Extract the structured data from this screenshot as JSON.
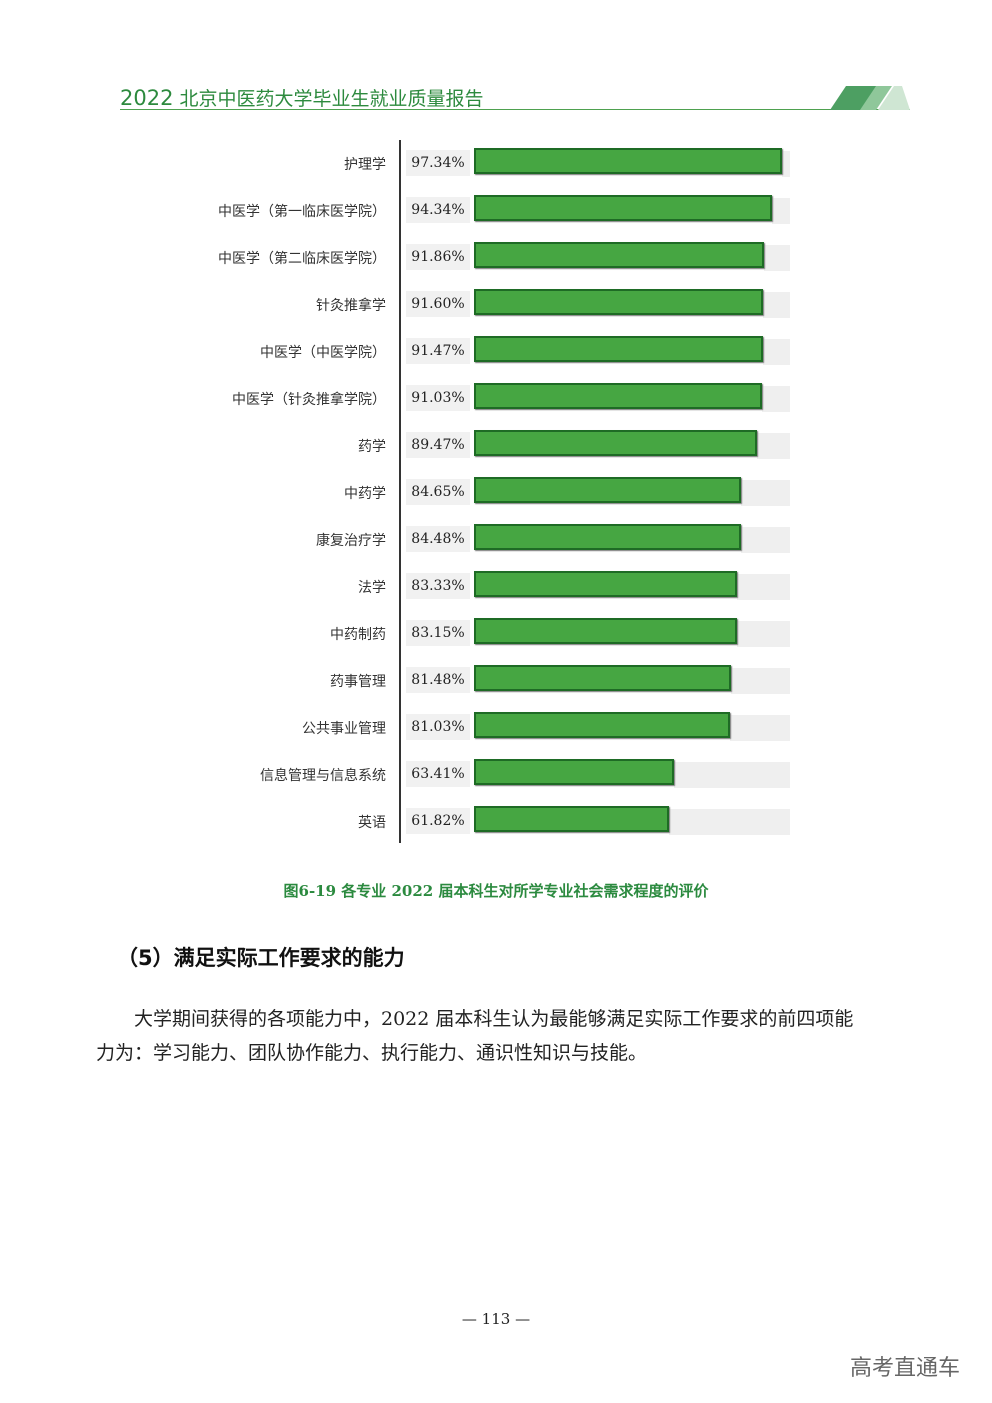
{
  "header": {
    "year": "2022",
    "title": "北京中医药大学毕业生就业质量报告"
  },
  "chart_data": {
    "type": "bar",
    "orientation": "horizontal",
    "title": "图6-19 各专业 2022 届本科生对所学专业社会需求程度的评价",
    "categories": [
      "护理学",
      "中医学（第一临床医学院）",
      "中医学（第二临床医学院）",
      "针灸推拿学",
      "中医学（中医学院）",
      "中医学（针灸推拿学院）",
      "药学",
      "中药学",
      "康复治疗学",
      "法学",
      "中药制药",
      "药事管理",
      "公共事业管理",
      "信息管理与信息系统",
      "英语"
    ],
    "values": [
      97.34,
      94.34,
      91.86,
      91.6,
      91.47,
      91.03,
      89.47,
      84.65,
      84.48,
      83.33,
      83.15,
      81.48,
      81.03,
      63.41,
      61.82
    ],
    "value_labels": [
      "97.34%",
      "94.34%",
      "91.86%",
      "91.60%",
      "91.47%",
      "91.03%",
      "89.47%",
      "84.65%",
      "84.48%",
      "83.33%",
      "83.15%",
      "81.48%",
      "81.03%",
      "63.41%",
      "61.82%"
    ],
    "xlim": [
      0,
      100
    ],
    "bar_color": "#46a642",
    "bar_border_color": "#1e6b25",
    "background_color": "#efefef"
  },
  "section": {
    "heading": "（5）满足实际工作要求的能力",
    "paragraph_line1": "大学期间获得的各项能力中，2022 届本科生认为最能够满足实际工作要求的前四项能",
    "paragraph_line2": "力为：学习能力、团队协作能力、执行能力、通识性知识与技能。"
  },
  "page_number": "— 113 —",
  "watermark": "高考直通车"
}
